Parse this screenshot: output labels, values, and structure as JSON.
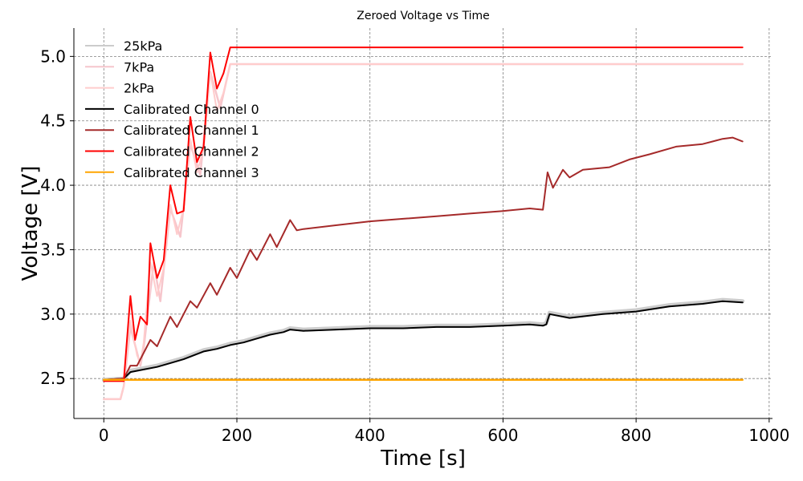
{
  "chart_data": {
    "type": "line",
    "title": "Zeroed Voltage vs Time",
    "xlabel": "Time [s]",
    "ylabel": "Voltage [V]",
    "xlim": [
      -45,
      1005
    ],
    "ylim": [
      2.19,
      5.22
    ],
    "xticks": [
      0,
      200,
      400,
      600,
      800,
      1000
    ],
    "xtick_labels": [
      "0",
      "200",
      "400",
      "600",
      "800",
      "1000"
    ],
    "yticks": [
      2.5,
      3.0,
      3.5,
      4.0,
      4.5,
      5.0
    ],
    "ytick_labels": [
      "2.5",
      "3.0",
      "3.5",
      "4.0",
      "4.5",
      "5.0"
    ],
    "grid": true,
    "legend_position": "top-left",
    "series": [
      {
        "name": "25kPa",
        "color": "#cccccc",
        "width": 5,
        "x": [
          0,
          30,
          40,
          60,
          80,
          100,
          120,
          150,
          170,
          190,
          210,
          230,
          250,
          270,
          280,
          300,
          350,
          400,
          450,
          500,
          550,
          600,
          640,
          660,
          665,
          670,
          700,
          750,
          800,
          850,
          900,
          930,
          960
        ],
        "y": [
          2.49,
          2.5,
          2.56,
          2.58,
          2.6,
          2.63,
          2.66,
          2.72,
          2.74,
          2.77,
          2.79,
          2.82,
          2.85,
          2.87,
          2.89,
          2.88,
          2.89,
          2.9,
          2.9,
          2.91,
          2.91,
          2.92,
          2.93,
          2.92,
          2.93,
          3.01,
          2.98,
          3.01,
          3.03,
          3.07,
          3.09,
          3.11,
          3.1
        ]
      },
      {
        "name": "7kPa",
        "color": "#f6c6cc",
        "width": 2.5,
        "x": [
          0,
          25,
          30,
          40,
          55,
          60,
          75,
          85,
          100,
          115,
          130,
          145,
          160,
          175,
          190,
          250,
          400,
          600,
          800,
          960
        ],
        "y": [
          2.34,
          2.34,
          2.44,
          2.9,
          2.6,
          2.74,
          3.4,
          3.1,
          3.82,
          3.6,
          4.32,
          4.08,
          4.88,
          4.6,
          4.94,
          4.94,
          4.94,
          4.94,
          4.94,
          4.94
        ]
      },
      {
        "name": "2kPa",
        "color": "#ffcccc",
        "width": 2,
        "x": [
          0,
          25,
          30,
          40,
          50,
          55,
          60,
          70,
          80,
          90,
          100,
          110,
          120,
          130,
          140,
          150,
          160,
          170,
          180,
          190,
          300,
          500,
          700,
          960
        ],
        "y": [
          2.34,
          2.34,
          2.44,
          2.95,
          2.68,
          2.62,
          2.78,
          3.4,
          3.14,
          3.36,
          3.85,
          3.62,
          3.82,
          4.36,
          4.1,
          4.28,
          4.88,
          4.58,
          4.72,
          4.94,
          4.94,
          4.94,
          4.94,
          4.94
        ]
      },
      {
        "name": "Calibrated Channel 0",
        "color": "#000000",
        "width": 2,
        "x": [
          0,
          30,
          40,
          60,
          80,
          100,
          120,
          150,
          170,
          190,
          210,
          230,
          250,
          270,
          280,
          300,
          350,
          400,
          450,
          500,
          550,
          600,
          640,
          660,
          665,
          670,
          700,
          750,
          800,
          850,
          900,
          930,
          960
        ],
        "y": [
          2.49,
          2.5,
          2.55,
          2.57,
          2.59,
          2.62,
          2.65,
          2.71,
          2.73,
          2.76,
          2.78,
          2.81,
          2.84,
          2.86,
          2.88,
          2.87,
          2.88,
          2.89,
          2.89,
          2.9,
          2.9,
          2.91,
          2.92,
          2.91,
          2.92,
          3.0,
          2.97,
          3.0,
          3.02,
          3.06,
          3.08,
          3.1,
          3.09
        ]
      },
      {
        "name": "Calibrated Channel 1",
        "color": "#a52a2a",
        "width": 2,
        "x": [
          0,
          30,
          40,
          50,
          70,
          80,
          100,
          110,
          130,
          140,
          160,
          170,
          190,
          200,
          220,
          230,
          250,
          260,
          280,
          290,
          300,
          350,
          400,
          450,
          500,
          550,
          600,
          640,
          660,
          667,
          675,
          690,
          700,
          720,
          760,
          790,
          820,
          860,
          900,
          930,
          945,
          960
        ],
        "y": [
          2.49,
          2.5,
          2.6,
          2.6,
          2.8,
          2.75,
          2.98,
          2.9,
          3.1,
          3.05,
          3.24,
          3.15,
          3.36,
          3.28,
          3.5,
          3.42,
          3.62,
          3.52,
          3.73,
          3.65,
          3.66,
          3.69,
          3.72,
          3.74,
          3.76,
          3.78,
          3.8,
          3.82,
          3.81,
          4.1,
          3.98,
          4.12,
          4.06,
          4.12,
          4.14,
          4.2,
          4.24,
          4.3,
          4.32,
          4.36,
          4.37,
          4.34
        ]
      },
      {
        "name": "Calibrated Channel 2",
        "color": "#ff0000",
        "width": 2,
        "x": [
          0,
          30,
          40,
          47,
          55,
          65,
          70,
          80,
          90,
          100,
          110,
          120,
          130,
          140,
          150,
          160,
          170,
          180,
          190,
          400,
          600,
          800,
          960
        ],
        "y": [
          2.48,
          2.48,
          3.14,
          2.8,
          2.98,
          2.92,
          3.55,
          3.28,
          3.42,
          4.0,
          3.78,
          3.8,
          4.53,
          4.18,
          4.3,
          5.03,
          4.75,
          4.87,
          5.07,
          5.07,
          5.07,
          5.07,
          5.07
        ]
      },
      {
        "name": "Calibrated Channel 3",
        "color": "#ffa500",
        "width": 2.5,
        "x": [
          0,
          100,
          200,
          300,
          400,
          500,
          600,
          700,
          800,
          900,
          960
        ],
        "y": [
          2.49,
          2.49,
          2.49,
          2.49,
          2.49,
          2.49,
          2.49,
          2.49,
          2.49,
          2.49,
          2.49
        ]
      }
    ]
  }
}
